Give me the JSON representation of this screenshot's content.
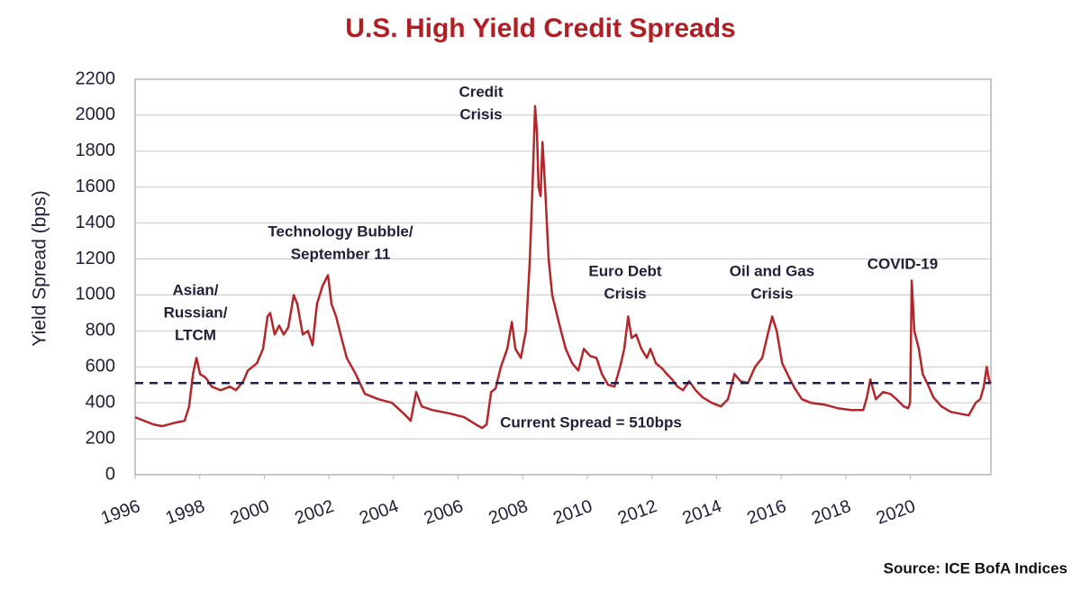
{
  "chart_data": {
    "type": "line",
    "title": "U.S. High Yield Credit Spreads",
    "ylabel": "Yield Spread (bps)",
    "source": "Source: ICE BofA Indices",
    "xlim": [
      1996,
      2022.49
    ],
    "xticks": [
      1996,
      1998,
      2000,
      2002,
      2004,
      2006,
      2008,
      2010,
      2012,
      2014,
      2016,
      2018,
      2020
    ],
    "ylim": [
      0,
      2200
    ],
    "yticks": [
      0,
      200,
      400,
      600,
      800,
      1000,
      1200,
      1400,
      1600,
      1800,
      2000,
      2200
    ],
    "grid": true,
    "current_spread": 510,
    "current_spread_label": "Current Spread = 510bps",
    "annotations": [
      {
        "lines": [
          "Asian/",
          "Russian/",
          "LTCM"
        ]
      },
      {
        "lines": [
          "Technology Bubble/",
          "September 11"
        ]
      },
      {
        "lines": [
          "Credit",
          "Crisis"
        ]
      },
      {
        "lines": [
          "Euro Debt",
          "Crisis"
        ]
      },
      {
        "lines": [
          "Oil and Gas",
          "Crisis"
        ]
      },
      {
        "lines": [
          "COVID-19"
        ]
      }
    ],
    "series": [
      {
        "color": "#b3262a",
        "x": [
          1996.0,
          1996.28,
          1996.56,
          1996.84,
          1997.26,
          1997.53,
          1997.67,
          1997.79,
          1997.9,
          1998.01,
          1998.18,
          1998.37,
          1998.65,
          1998.93,
          1999.12,
          1999.35,
          1999.49,
          1999.77,
          1999.96,
          2000.1,
          2000.18,
          2000.32,
          2000.46,
          2000.6,
          2000.74,
          2000.91,
          2001.02,
          2001.19,
          2001.35,
          2001.49,
          2001.63,
          2001.8,
          2001.97,
          2002.08,
          2002.22,
          2002.36,
          2002.55,
          2002.83,
          2003.11,
          2003.53,
          2003.95,
          2004.37,
          2004.53,
          2004.7,
          2004.87,
          2005.2,
          2005.76,
          2006.18,
          2006.54,
          2006.74,
          2006.88,
          2007.02,
          2007.16,
          2007.32,
          2007.52,
          2007.66,
          2007.77,
          2007.94,
          2008.1,
          2008.22,
          2008.3,
          2008.38,
          2008.44,
          2008.49,
          2008.55,
          2008.61,
          2008.69,
          2008.8,
          2008.91,
          2009.11,
          2009.33,
          2009.53,
          2009.72,
          2009.89,
          2010.09,
          2010.28,
          2010.45,
          2010.64,
          2010.84,
          2011.01,
          2011.14,
          2011.26,
          2011.37,
          2011.51,
          2011.67,
          2011.84,
          2011.95,
          2012.12,
          2012.32,
          2012.46,
          2012.62,
          2012.79,
          2012.96,
          2013.15,
          2013.35,
          2013.57,
          2013.85,
          2014.13,
          2014.35,
          2014.55,
          2014.74,
          2014.97,
          2015.19,
          2015.41,
          2015.58,
          2015.72,
          2015.86,
          2016.03,
          2016.22,
          2016.42,
          2016.64,
          2016.92,
          2017.34,
          2017.75,
          2018.17,
          2018.54,
          2018.65,
          2018.76,
          2018.93,
          2019.15,
          2019.37,
          2019.57,
          2019.79,
          2019.93,
          2019.99,
          2020.04,
          2020.12,
          2020.26,
          2020.38,
          2020.54,
          2020.71,
          2020.96,
          2021.24,
          2021.52,
          2021.8,
          2022.02,
          2022.16,
          2022.27,
          2022.36,
          2022.44,
          2022.49
        ],
        "values": [
          320,
          300,
          280,
          270,
          290,
          300,
          380,
          560,
          650,
          560,
          540,
          490,
          470,
          490,
          470,
          520,
          580,
          620,
          700,
          880,
          900,
          780,
          830,
          780,
          820,
          1000,
          950,
          780,
          800,
          720,
          950,
          1050,
          1110,
          950,
          880,
          780,
          650,
          560,
          450,
          420,
          400,
          330,
          300,
          460,
          380,
          360,
          340,
          320,
          280,
          260,
          280,
          460,
          480,
          600,
          700,
          850,
          700,
          650,
          800,
          1200,
          1600,
          2050,
          1900,
          1600,
          1550,
          1850,
          1600,
          1200,
          1000,
          850,
          700,
          620,
          580,
          700,
          660,
          650,
          560,
          500,
          490,
          600,
          700,
          880,
          760,
          780,
          700,
          650,
          700,
          620,
          590,
          560,
          530,
          490,
          470,
          520,
          470,
          430,
          400,
          380,
          420,
          560,
          520,
          510,
          600,
          650,
          780,
          880,
          800,
          620,
          550,
          480,
          420,
          400,
          390,
          370,
          360,
          360,
          430,
          530,
          420,
          460,
          450,
          420,
          380,
          370,
          400,
          1080,
          800,
          700,
          560,
          500,
          430,
          380,
          350,
          340,
          330,
          400,
          420,
          490,
          600,
          520,
          510
        ]
      }
    ]
  }
}
